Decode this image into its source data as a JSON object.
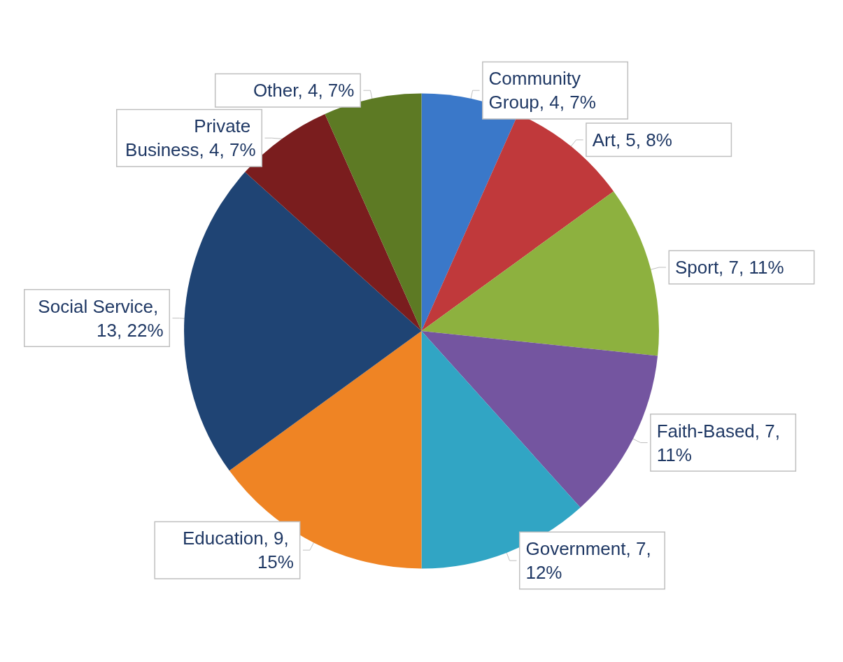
{
  "chart_data": {
    "type": "pie",
    "categories": [
      "Community Group",
      "Art",
      "Sport",
      "Faith-Based",
      "Government",
      "Education",
      "Social Service",
      "Private Business",
      "Other"
    ],
    "values": [
      4,
      5,
      7,
      7,
      7,
      9,
      13,
      4,
      4
    ],
    "value_labels": [
      ", 4, 7%",
      ", 5, 8%",
      ", 7, 11%",
      ", 7, 11%",
      ", 7, 12%",
      ", 9, 15%",
      ", 13, 22%",
      ", 4, 7%",
      ", 4, 7%"
    ],
    "colors": [
      "#3a78c9",
      "#c0393b",
      "#8db13f",
      "#7455a0",
      "#31a5c4",
      "#ef8424",
      "#1f4474",
      "#7a1d1e",
      "#5d7a24"
    ],
    "legend": false
  }
}
